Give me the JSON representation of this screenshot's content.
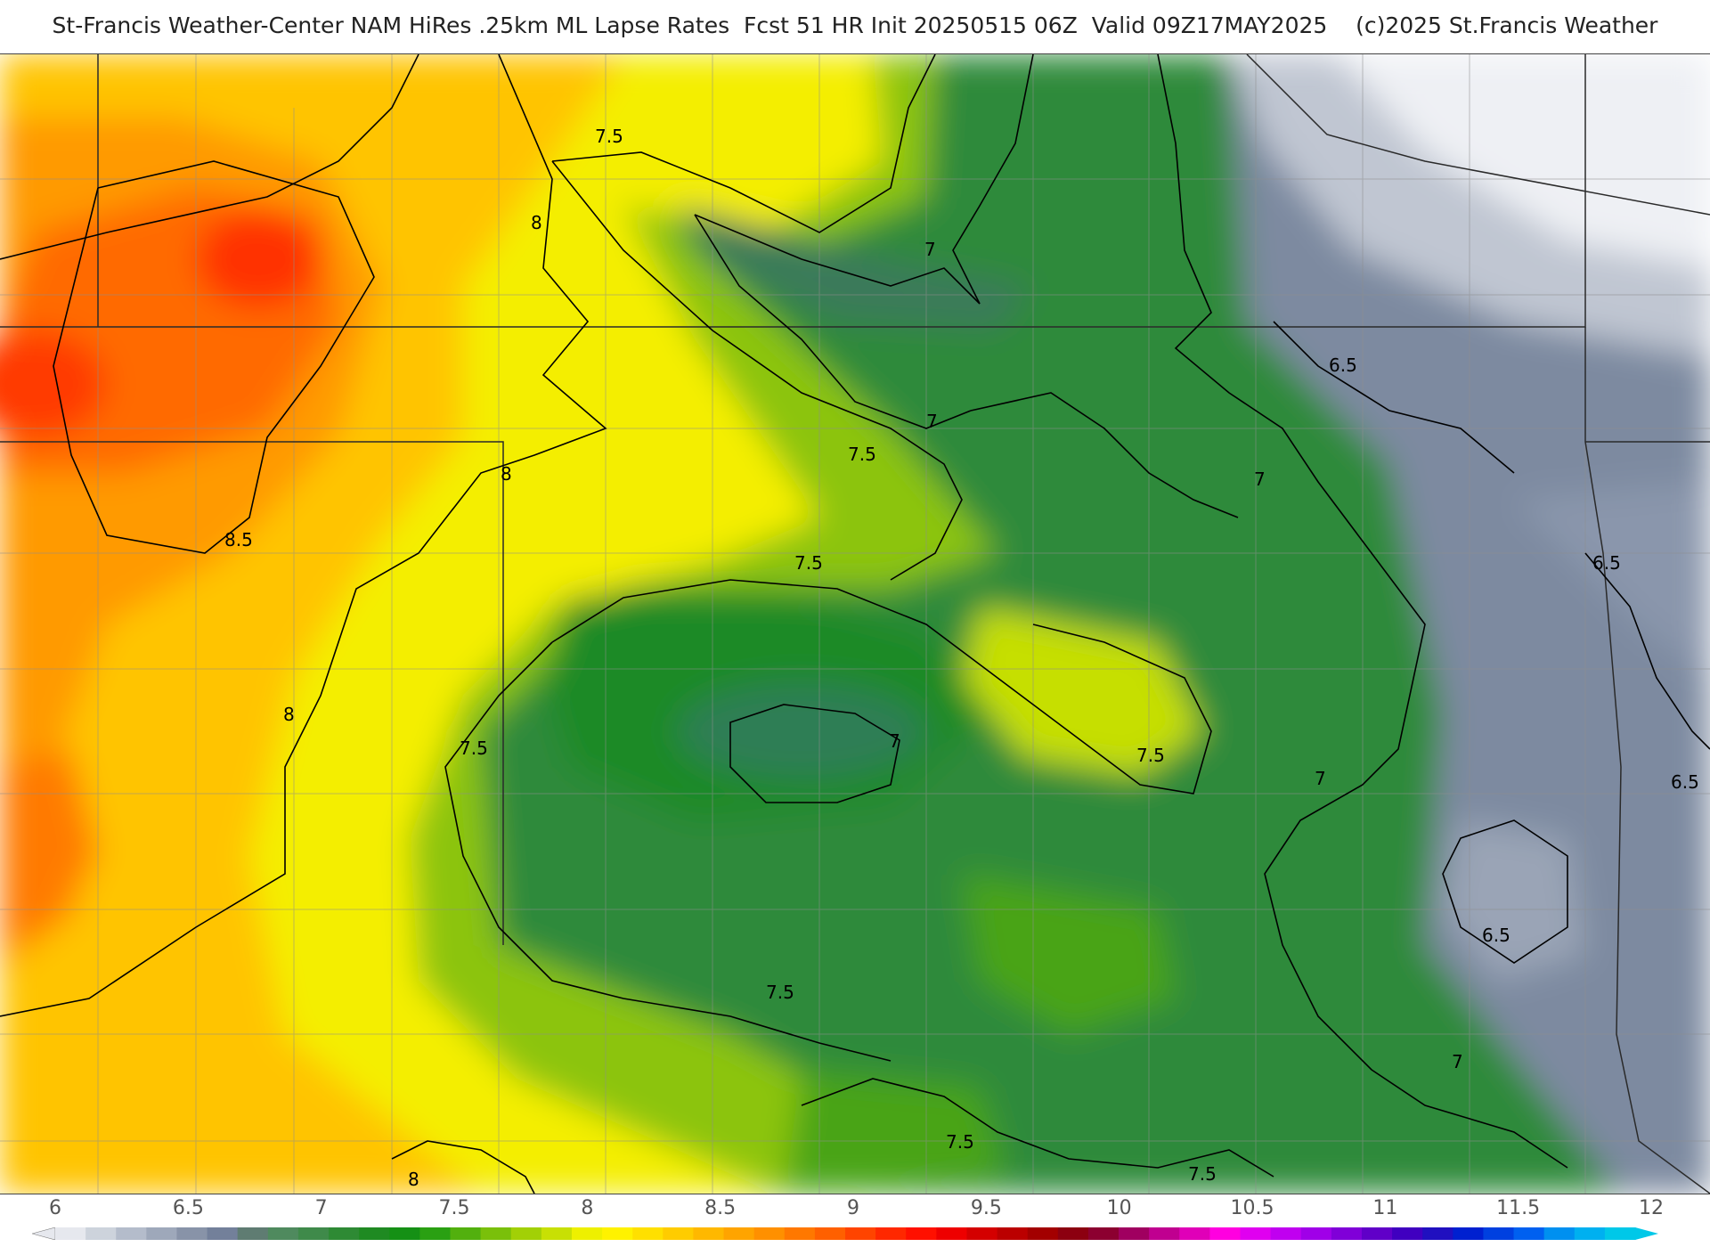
{
  "title": "St-Francis Weather-Center NAM HiRes .25km ML Lapse Rates  Fcst 51 HR Init 20250515 06Z  Valid 09Z17MAY2025    (c)2025 St.Francis Weather",
  "map": {
    "contour_labels": [
      "7.5",
      "8",
      "7",
      "8",
      "8.5",
      "7",
      "7.5",
      "7",
      "6.5",
      "7.5",
      "7.5",
      "7",
      "7.5",
      "8",
      "7",
      "6.5",
      "6.5",
      "6.5",
      "7.5",
      "7",
      "7.5",
      "7.5",
      "8"
    ]
  },
  "legend": {
    "ticks": [
      "6",
      "6.5",
      "7",
      "7.5",
      "8",
      "8.5",
      "9",
      "9.5",
      "10",
      "10.5",
      "11",
      "11.5",
      "12"
    ],
    "colors": [
      "#e6e8ee",
      "#cdd3dc",
      "#b4bccb",
      "#9ea8ba",
      "#8893a8",
      "#73809a",
      "#5f7c72",
      "#4f8a5e",
      "#3f8a4a",
      "#2e8a34",
      "#1f8a22",
      "#159015",
      "#2aa012",
      "#52b00e",
      "#7ac00a",
      "#a2d006",
      "#c8e004",
      "#eef000",
      "#fff200",
      "#ffe000",
      "#ffcc00",
      "#ffb800",
      "#ffa400",
      "#ff9000",
      "#ff7800",
      "#ff6000",
      "#ff4400",
      "#ff2800",
      "#ff1000",
      "#ee0000",
      "#d40000",
      "#bb0000",
      "#a30000",
      "#8c0010",
      "#8c0030",
      "#a00060",
      "#c00090",
      "#e000b8",
      "#ff00e0",
      "#e000f0",
      "#c000f0",
      "#a000e8",
      "#8000d8",
      "#6000c8",
      "#4000c0",
      "#2010c0",
      "#0020d0",
      "#0040e0",
      "#0060f0",
      "#0090f0",
      "#00b0f0",
      "#00c8e8"
    ]
  }
}
